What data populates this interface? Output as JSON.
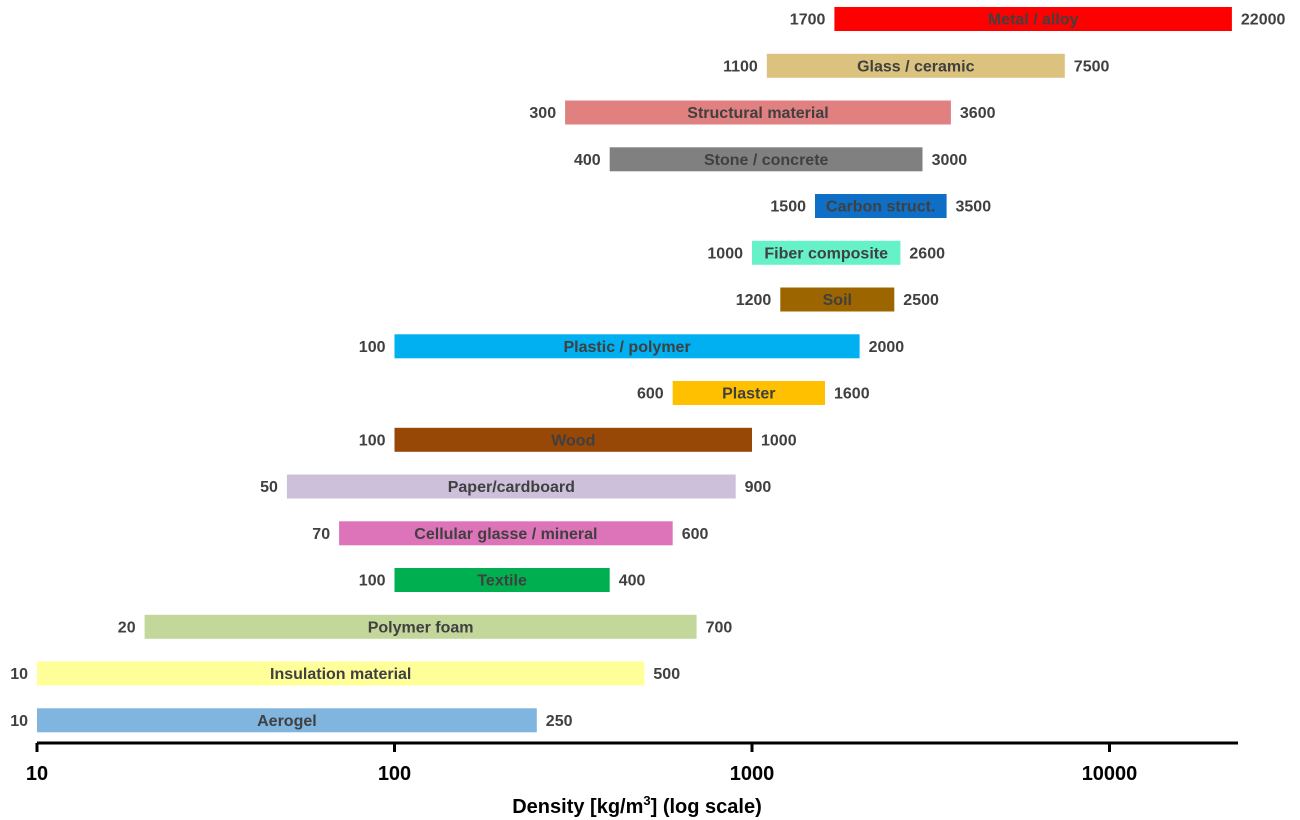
{
  "chart_data": {
    "type": "bar",
    "orientation": "horizontal",
    "range_bars": true,
    "xscale": "log",
    "xlim": [
      10,
      22000
    ],
    "xlabel_parts": [
      "Density [kg/m",
      "3",
      "] (log scale)"
    ],
    "xticks": [
      10,
      100,
      1000,
      10000
    ],
    "xtick_labels": [
      "10",
      "100",
      "1000",
      "10000"
    ],
    "grid": false,
    "legend": "none",
    "series": [
      {
        "category": "Metal / alloy",
        "min": 1700,
        "max": 22000,
        "color": "#ff0000",
        "min_label": "1700",
        "max_label": "22000"
      },
      {
        "category": "Glass / ceramic",
        "min": 1100,
        "max": 7500,
        "color": "#dbc27f",
        "min_label": "1100",
        "max_label": "7500"
      },
      {
        "category": "Structural material",
        "min": 300,
        "max": 3600,
        "color": "#e08080",
        "min_label": "300",
        "max_label": "3600"
      },
      {
        "category": "Stone / concrete",
        "min": 400,
        "max": 3000,
        "color": "#808080",
        "min_label": "400",
        "max_label": "3000"
      },
      {
        "category": "Carbon struct.",
        "min": 1500,
        "max": 3500,
        "color": "#0f6fc6",
        "min_label": "1500",
        "max_label": "3500"
      },
      {
        "category": "Fiber composite",
        "min": 1000,
        "max": 2600,
        "color": "#66f2c8",
        "min_label": "1000",
        "max_label": "2600"
      },
      {
        "category": "Soil",
        "min": 1200,
        "max": 2500,
        "color": "#9c6500",
        "min_label": "1200",
        "max_label": "2500"
      },
      {
        "category": "Plastic / polymer",
        "min": 100,
        "max": 2000,
        "color": "#00b0f0",
        "min_label": "100",
        "max_label": "2000"
      },
      {
        "category": "Plaster",
        "min": 600,
        "max": 1600,
        "color": "#ffc000",
        "min_label": "600",
        "max_label": "1600"
      },
      {
        "category": "Wood",
        "min": 100,
        "max": 1000,
        "color": "#974706",
        "min_label": "100",
        "max_label": "1000"
      },
      {
        "category": "Paper/cardboard",
        "min": 50,
        "max": 900,
        "color": "#ccc0da",
        "min_label": "50",
        "max_label": "900"
      },
      {
        "category": "Cellular glasse / mineral",
        "min": 70,
        "max": 600,
        "color": "#dd73b8",
        "min_label": "70",
        "max_label": "600"
      },
      {
        "category": "Textile",
        "min": 100,
        "max": 400,
        "color": "#00b050",
        "min_label": "100",
        "max_label": "400"
      },
      {
        "category": "Polymer foam",
        "min": 20,
        "max": 700,
        "color": "#c4d79b",
        "min_label": "20",
        "max_label": "700"
      },
      {
        "category": "Insulation material",
        "min": 10,
        "max": 500,
        "color": "#ffff99",
        "min_label": "10",
        "max_label": "500"
      },
      {
        "category": "Aerogel",
        "min": 10,
        "max": 250,
        "color": "#80b5df",
        "min_label": "10",
        "max_label": "250"
      }
    ]
  }
}
